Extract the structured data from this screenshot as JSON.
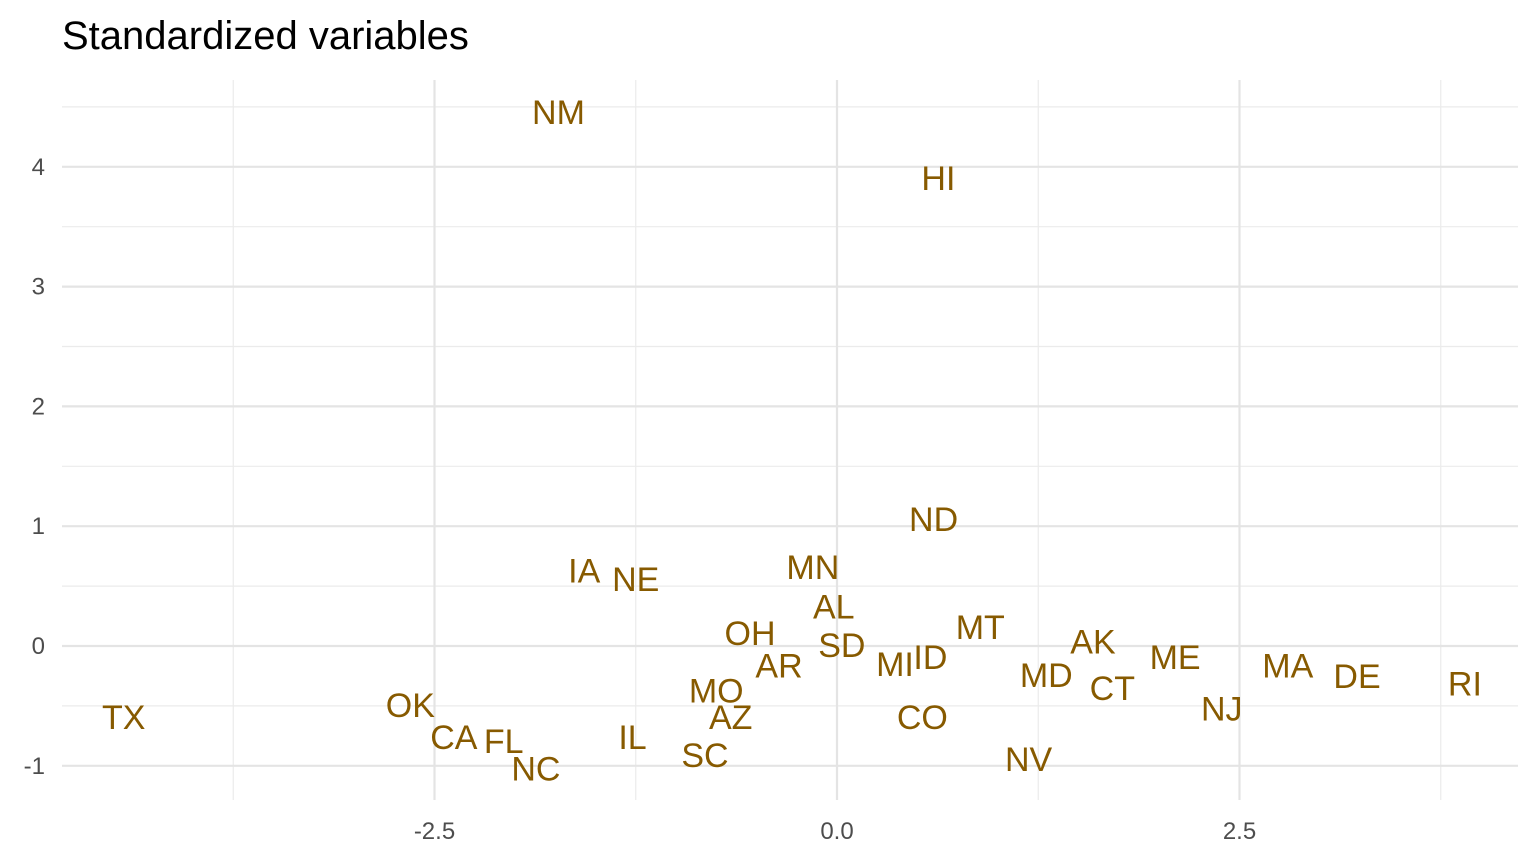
{
  "chart_data": {
    "type": "scatter",
    "title": "Standardized variables",
    "xlabel": "",
    "ylabel": "",
    "xlim": [
      -3.85,
      3.35
    ],
    "ylim": [
      -1.3,
      4.7
    ],
    "x_ticks": [
      -2.5,
      0.0,
      2.5
    ],
    "x_tick_labels": [
      "-2.5",
      "0.0",
      "2.5"
    ],
    "y_ticks": [
      -1,
      0,
      1,
      2,
      3,
      4
    ],
    "y_tick_labels": [
      "-1",
      "0",
      "1",
      "2",
      "3",
      "4"
    ],
    "grid": true,
    "label_color": "#875A00",
    "points": [
      {
        "label": "NM",
        "x": -1.73,
        "y": 4.45
      },
      {
        "label": "HI",
        "x": 0.63,
        "y": 3.9
      },
      {
        "label": "ND",
        "x": 0.6,
        "y": 1.05
      },
      {
        "label": "IA",
        "x": -1.57,
        "y": 0.62
      },
      {
        "label": "NE",
        "x": -1.25,
        "y": 0.55
      },
      {
        "label": "MN",
        "x": -0.15,
        "y": 0.65
      },
      {
        "label": "AL",
        "x": -0.02,
        "y": 0.32
      },
      {
        "label": "OH",
        "x": -0.54,
        "y": 0.1
      },
      {
        "label": "SD",
        "x": 0.03,
        "y": 0.0
      },
      {
        "label": "MT",
        "x": 0.89,
        "y": 0.15
      },
      {
        "label": "AK",
        "x": 1.59,
        "y": 0.03
      },
      {
        "label": "ME",
        "x": 2.1,
        "y": -0.1
      },
      {
        "label": "MA",
        "x": 2.8,
        "y": -0.17
      },
      {
        "label": "AR",
        "x": -0.36,
        "y": -0.17
      },
      {
        "label": "MI",
        "x": 0.36,
        "y": -0.16
      },
      {
        "label": "ID",
        "x": 0.58,
        "y": -0.1
      },
      {
        "label": "MD",
        "x": 1.3,
        "y": -0.25
      },
      {
        "label": "DE",
        "x": 3.23,
        "y": -0.26
      },
      {
        "label": "RI",
        "x": 3.9,
        "y": -0.32
      },
      {
        "label": "CT",
        "x": 1.71,
        "y": -0.36
      },
      {
        "label": "MO",
        "x": -0.75,
        "y": -0.38
      },
      {
        "label": "OK",
        "x": -2.65,
        "y": -0.5
      },
      {
        "label": "NJ",
        "x": 2.39,
        "y": -0.53
      },
      {
        "label": "TX",
        "x": -4.43,
        "y": -0.6
      },
      {
        "label": "AZ",
        "x": -0.66,
        "y": -0.6
      },
      {
        "label": "CO",
        "x": 0.53,
        "y": -0.6
      },
      {
        "label": "CA",
        "x": -2.38,
        "y": -0.77
      },
      {
        "label": "FL",
        "x": -2.07,
        "y": -0.8
      },
      {
        "label": "IL",
        "x": -1.27,
        "y": -0.77
      },
      {
        "label": "SC",
        "x": -0.82,
        "y": -0.92
      },
      {
        "label": "NV",
        "x": 1.19,
        "y": -0.95
      },
      {
        "label": "NC",
        "x": -1.87,
        "y": -1.03
      }
    ]
  }
}
